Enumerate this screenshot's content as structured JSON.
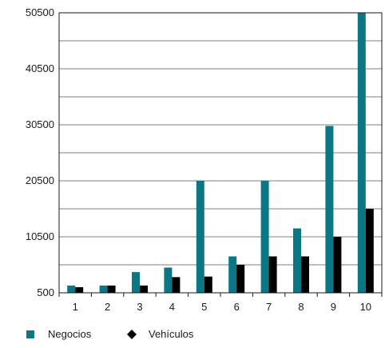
{
  "chart_data": {
    "type": "bar",
    "categories": [
      "1",
      "2",
      "3",
      "4",
      "5",
      "6",
      "7",
      "8",
      "9",
      "10"
    ],
    "series": [
      {
        "name": "Negocios",
        "color": "#0c7784",
        "marker": "square",
        "values": [
          1800,
          1800,
          4200,
          5000,
          20500,
          7000,
          20500,
          12000,
          30300,
          50500
        ]
      },
      {
        "name": "Vehículos",
        "color": "#000000",
        "marker": "diamond",
        "values": [
          1500,
          1800,
          1800,
          3300,
          3400,
          5500,
          7000,
          7000,
          10500,
          15500
        ]
      }
    ],
    "yticks": [
      "500",
      "10500",
      "20500",
      "30500",
      "40500",
      "50500"
    ],
    "ylim": [
      500,
      50500
    ],
    "grid": true,
    "legend_position": "bottom-left"
  }
}
